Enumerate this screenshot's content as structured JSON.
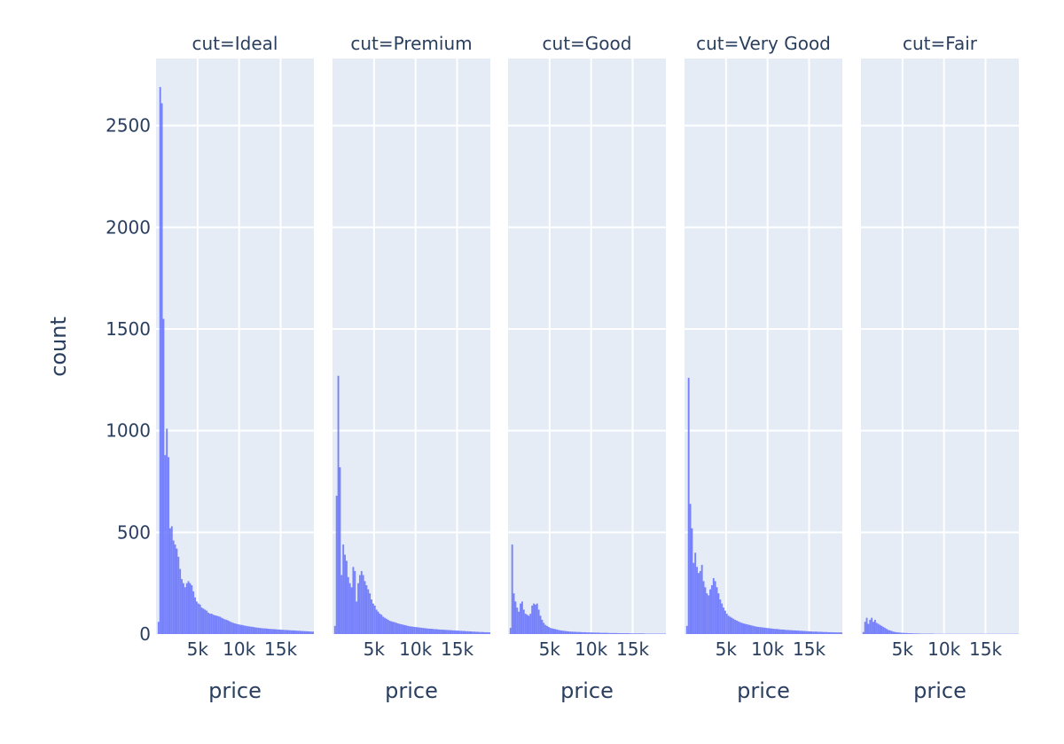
{
  "chart_data": {
    "type": "histogram",
    "title": "",
    "xlabel": "price",
    "ylabel": "count",
    "xlim": [
      0,
      19000
    ],
    "ylim": [
      0,
      2830
    ],
    "x_ticks": [
      {
        "value": 5000,
        "label": "5k"
      },
      {
        "value": 10000,
        "label": "10k"
      },
      {
        "value": 15000,
        "label": "15k"
      }
    ],
    "y_ticks": [
      {
        "value": 0,
        "label": "0"
      },
      {
        "value": 500,
        "label": "500"
      },
      {
        "value": 1000,
        "label": "1000"
      },
      {
        "value": 1500,
        "label": "1500"
      },
      {
        "value": 2000,
        "label": "2000"
      },
      {
        "value": 2500,
        "label": "2500"
      }
    ],
    "color": "#636efa",
    "bin_centers": [
      300,
      500,
      700,
      900,
      1100,
      1300,
      1500,
      1700,
      1900,
      2100,
      2300,
      2500,
      2700,
      2900,
      3100,
      3300,
      3500,
      3700,
      3900,
      4100,
      4300,
      4500,
      4700,
      4900,
      5100,
      5300,
      5500,
      5700,
      5900,
      6100,
      6300,
      6500,
      6700,
      6900,
      7100,
      7300,
      7500,
      7700,
      7900,
      8100,
      8300,
      8500,
      8700,
      8900,
      9100,
      9300,
      9500,
      9700,
      9900,
      10100,
      10300,
      10500,
      10700,
      10900,
      11100,
      11300,
      11500,
      11700,
      11900,
      12100,
      12300,
      12500,
      12700,
      12900,
      13100,
      13300,
      13500,
      13700,
      13900,
      14100,
      14300,
      14500,
      14700,
      14900,
      15100,
      15300,
      15500,
      15700,
      15900,
      16100,
      16300,
      16500,
      16700,
      16900,
      17100,
      17300,
      17500,
      17700,
      17900,
      18100,
      18300,
      18500,
      18700,
      18900
    ],
    "series": [
      {
        "name": "cut=Ideal",
        "values": [
          60,
          2690,
          2610,
          1550,
          880,
          1010,
          870,
          520,
          530,
          460,
          440,
          420,
          380,
          320,
          270,
          250,
          230,
          250,
          260,
          250,
          240,
          210,
          180,
          160,
          150,
          145,
          130,
          125,
          120,
          115,
          105,
          100,
          100,
          95,
          92,
          90,
          88,
          85,
          80,
          76,
          72,
          70,
          66,
          62,
          58,
          55,
          52,
          50,
          48,
          46,
          45,
          43,
          41,
          40,
          38,
          37,
          36,
          35,
          33,
          32,
          31,
          30,
          29,
          28,
          28,
          27,
          26,
          25,
          25,
          24,
          24,
          23,
          22,
          22,
          21,
          21,
          20,
          20,
          19,
          19,
          18,
          18,
          17,
          17,
          16,
          16,
          15,
          15,
          14,
          14,
          13,
          13,
          12,
          12
        ]
      },
      {
        "name": "cut=Premium",
        "values": [
          40,
          680,
          1270,
          820,
          290,
          440,
          390,
          360,
          280,
          250,
          230,
          330,
          310,
          160,
          250,
          290,
          310,
          290,
          260,
          240,
          220,
          200,
          170,
          150,
          140,
          120,
          110,
          100,
          95,
          85,
          80,
          75,
          70,
          65,
          62,
          60,
          58,
          55,
          52,
          50,
          48,
          46,
          44,
          42,
          40,
          38,
          37,
          36,
          35,
          34,
          33,
          32,
          31,
          30,
          29,
          28,
          27,
          26,
          26,
          25,
          24,
          24,
          23,
          22,
          22,
          21,
          21,
          20,
          20,
          19,
          19,
          18,
          18,
          17,
          17,
          16,
          16,
          15,
          15,
          14,
          14,
          13,
          13,
          12,
          12,
          11,
          11,
          10,
          10,
          10,
          9,
          9,
          9,
          8
        ]
      },
      {
        "name": "cut=Good",
        "values": [
          30,
          440,
          200,
          160,
          130,
          110,
          150,
          160,
          120,
          100,
          95,
          90,
          100,
          140,
          150,
          145,
          150,
          120,
          90,
          70,
          55,
          45,
          40,
          35,
          30,
          28,
          26,
          24,
          22,
          20,
          18,
          17,
          16,
          15,
          14,
          13,
          12,
          12,
          11,
          11,
          10,
          10,
          10,
          9,
          9,
          9,
          8,
          8,
          8,
          8,
          7,
          7,
          7,
          7,
          6,
          6,
          6,
          6,
          6,
          5,
          5,
          5,
          5,
          5,
          5,
          4,
          4,
          4,
          4,
          4,
          4,
          4,
          3,
          3,
          3,
          3,
          3,
          3,
          3,
          3,
          3,
          2,
          2,
          2,
          2,
          2,
          2,
          2,
          2,
          2,
          2,
          2,
          2,
          2
        ]
      },
      {
        "name": "cut=Very Good",
        "values": [
          40,
          1260,
          640,
          520,
          350,
          400,
          330,
          300,
          310,
          340,
          260,
          230,
          200,
          190,
          220,
          240,
          275,
          260,
          230,
          200,
          170,
          150,
          130,
          115,
          100,
          90,
          85,
          80,
          75,
          70,
          66,
          62,
          58,
          55,
          52,
          50,
          48,
          46,
          44,
          42,
          40,
          38,
          36,
          35,
          34,
          33,
          32,
          31,
          30,
          29,
          28,
          27,
          26,
          25,
          25,
          24,
          23,
          22,
          22,
          21,
          20,
          20,
          19,
          19,
          18,
          18,
          17,
          17,
          16,
          16,
          15,
          15,
          14,
          14,
          13,
          13,
          12,
          12,
          12,
          11,
          11,
          11,
          10,
          10,
          10,
          9,
          9,
          9,
          9,
          8,
          8,
          8,
          8,
          8
        ]
      },
      {
        "name": "cut=Fair",
        "values": [
          10,
          60,
          80,
          50,
          70,
          80,
          60,
          70,
          55,
          50,
          45,
          40,
          35,
          30,
          25,
          20,
          18,
          15,
          12,
          10,
          9,
          8,
          7,
          6,
          6,
          5,
          5,
          4,
          4,
          4,
          3,
          3,
          3,
          3,
          2,
          2,
          2,
          2,
          2,
          2,
          2,
          2,
          2,
          1,
          1,
          1,
          1,
          1,
          1,
          1,
          1,
          1,
          1,
          1,
          1,
          1,
          1,
          1,
          1,
          1,
          1,
          1,
          1,
          1,
          1,
          1,
          1,
          1,
          1,
          1,
          1,
          1,
          1,
          1,
          1,
          1,
          1,
          1,
          1,
          1,
          1,
          1,
          1,
          1,
          1,
          1,
          1,
          1,
          1,
          1,
          1,
          1,
          1,
          1
        ]
      }
    ]
  }
}
